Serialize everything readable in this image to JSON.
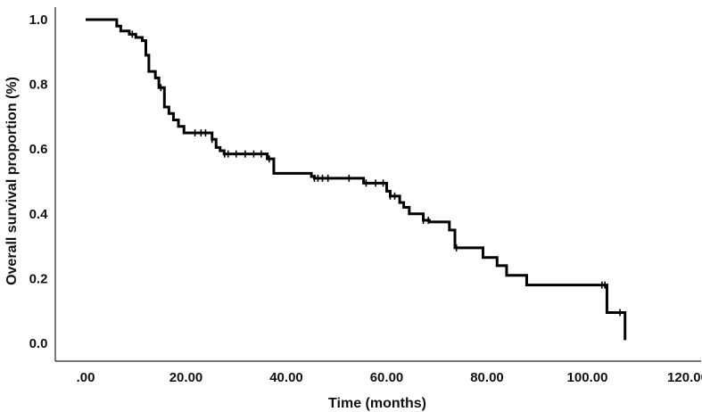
{
  "chart_data": {
    "type": "line",
    "subtype": "kaplan-meier-step",
    "xlabel": "Time (months)",
    "ylabel": "Overall survival proportion (%)",
    "xlim": [
      0,
      120
    ],
    "ylim": [
      0,
      1.0
    ],
    "xticks": [
      0,
      20,
      40,
      60,
      80,
      100,
      120
    ],
    "xtick_labels": [
      ".00",
      "20.00",
      "40.00",
      "60.00",
      "80.00",
      "100.00",
      "120.00"
    ],
    "yticks": [
      0,
      0.2,
      0.4,
      0.6,
      0.8,
      1.0
    ],
    "ytick_labels": [
      "0.0",
      "0.2",
      "0.4",
      "0.6",
      "0.8",
      "1.0"
    ],
    "grid": false,
    "line_color": "#000000",
    "steps": [
      [
        0.0,
        1.0
      ],
      [
        6.2,
        0.98
      ],
      [
        7.0,
        0.965
      ],
      [
        8.7,
        0.955
      ],
      [
        10.0,
        0.945
      ],
      [
        11.3,
        0.935
      ],
      [
        12.0,
        0.89
      ],
      [
        12.6,
        0.84
      ],
      [
        13.9,
        0.82
      ],
      [
        14.6,
        0.79
      ],
      [
        15.7,
        0.73
      ],
      [
        16.6,
        0.71
      ],
      [
        17.5,
        0.69
      ],
      [
        18.5,
        0.67
      ],
      [
        19.6,
        0.65
      ],
      [
        25.2,
        0.63
      ],
      [
        26.0,
        0.605
      ],
      [
        26.8,
        0.595
      ],
      [
        27.6,
        0.585
      ],
      [
        36.2,
        0.57
      ],
      [
        37.5,
        0.525
      ],
      [
        45.0,
        0.515
      ],
      [
        45.6,
        0.51
      ],
      [
        55.4,
        0.495
      ],
      [
        60.0,
        0.47
      ],
      [
        60.7,
        0.455
      ],
      [
        62.6,
        0.435
      ],
      [
        63.4,
        0.42
      ],
      [
        64.5,
        0.4
      ],
      [
        67.3,
        0.38
      ],
      [
        68.5,
        0.375
      ],
      [
        72.5,
        0.35
      ],
      [
        73.6,
        0.295
      ],
      [
        79.2,
        0.265
      ],
      [
        82.0,
        0.24
      ],
      [
        83.9,
        0.21
      ],
      [
        87.9,
        0.18
      ],
      [
        103.9,
        0.095
      ],
      [
        107.5,
        0.095
      ],
      [
        107.5,
        0.01
      ]
    ],
    "censored": [
      [
        9.3,
        0.955
      ],
      [
        15.0,
        0.79
      ],
      [
        21.8,
        0.65
      ],
      [
        23.0,
        0.65
      ],
      [
        23.9,
        0.65
      ],
      [
        25.2,
        0.63
      ],
      [
        27.7,
        0.585
      ],
      [
        28.4,
        0.585
      ],
      [
        30.0,
        0.585
      ],
      [
        31.8,
        0.585
      ],
      [
        33.5,
        0.585
      ],
      [
        35.0,
        0.585
      ],
      [
        36.6,
        0.57
      ],
      [
        45.6,
        0.51
      ],
      [
        46.3,
        0.51
      ],
      [
        47.2,
        0.51
      ],
      [
        48.3,
        0.51
      ],
      [
        52.5,
        0.51
      ],
      [
        55.9,
        0.495
      ],
      [
        57.8,
        0.495
      ],
      [
        59.3,
        0.495
      ],
      [
        60.7,
        0.455
      ],
      [
        61.6,
        0.455
      ],
      [
        67.3,
        0.38
      ],
      [
        68.3,
        0.38
      ],
      [
        73.9,
        0.295
      ],
      [
        102.9,
        0.18
      ],
      [
        103.5,
        0.18
      ],
      [
        106.5,
        0.095
      ]
    ]
  }
}
